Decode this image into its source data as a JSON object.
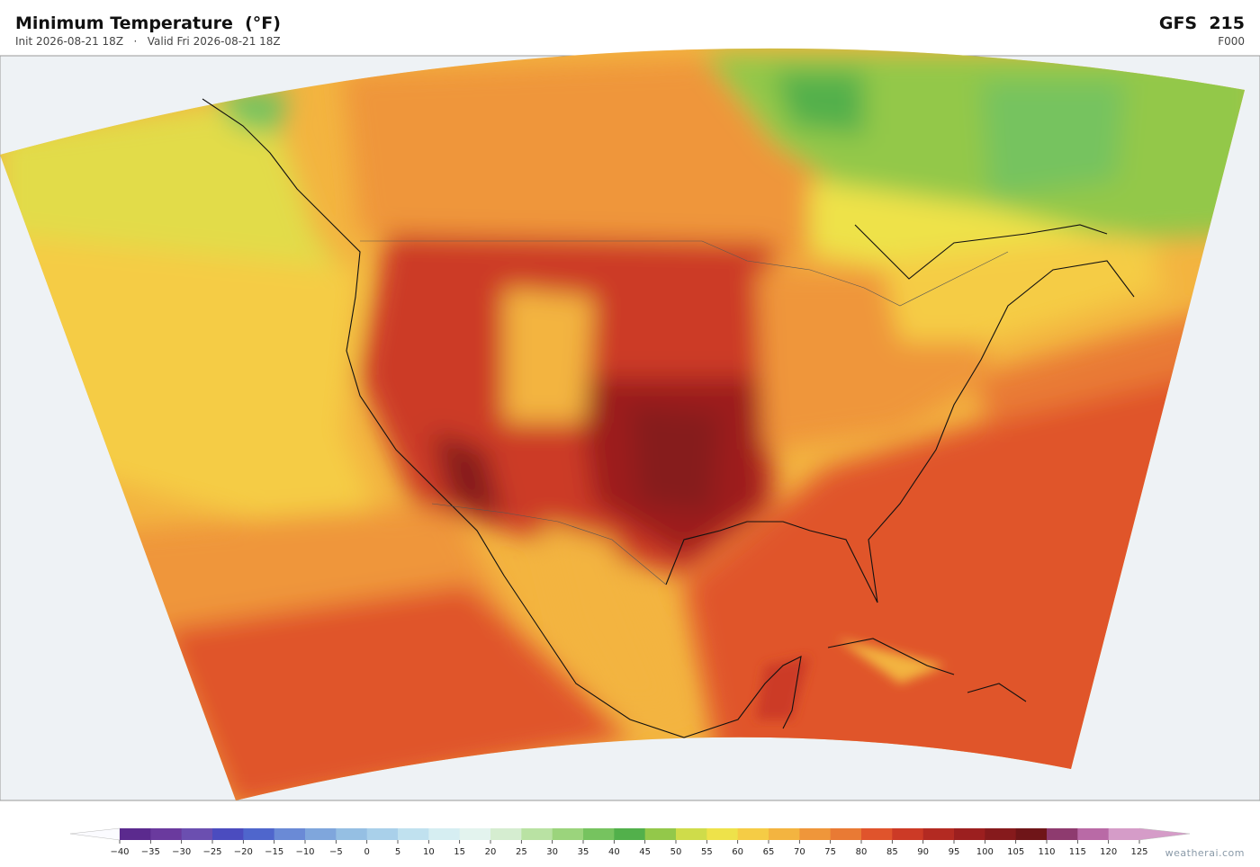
{
  "header": {
    "title": "Minimum Temperature  (°F)",
    "subtitle": "Init 2026-08-21 18Z   ·   Valid Fri 2026-08-21 18Z",
    "model": "GFS  215",
    "forecast_hour": "F000"
  },
  "colorbar": {
    "ticks": [
      {
        "value": -40,
        "label": "−40"
      },
      {
        "value": -35,
        "label": "−35"
      },
      {
        "value": -30,
        "label": "−30"
      },
      {
        "value": -25,
        "label": "−25"
      },
      {
        "value": -20,
        "label": "−20"
      },
      {
        "value": -15,
        "label": "−15"
      },
      {
        "value": -10,
        "label": "−10"
      },
      {
        "value": -5,
        "label": "−5"
      },
      0,
      5,
      10,
      15,
      20,
      25,
      30,
      35,
      40,
      45,
      50,
      55,
      60,
      65,
      70,
      75,
      80,
      85,
      90,
      95,
      100,
      105,
      110,
      115,
      120,
      125
    ],
    "colors": [
      "#5b2a8e",
      "#6a3a9e",
      "#6b4fb0",
      "#4b4cbf",
      "#4f66cc",
      "#6a8ad6",
      "#7fa6dc",
      "#95bfe3",
      "#a9d0ea",
      "#c0e1ef",
      "#d6eef2",
      "#e3f3ee",
      "#d5edd0",
      "#b9e2a3",
      "#9bd47c",
      "#76c35f",
      "#52b04b",
      "#93c84a",
      "#cfdc4a",
      "#eee24a",
      "#f5cc45",
      "#f3b440",
      "#ef963a",
      "#e97a34",
      "#e0542c",
      "#cc3a26",
      "#b32a22",
      "#9c1f1f",
      "#861a1c",
      "#6f1518",
      "#8e3b6f",
      "#b96aa6",
      "#d59cc8"
    ]
  },
  "footer": {
    "credit": "weatherai.com"
  }
}
